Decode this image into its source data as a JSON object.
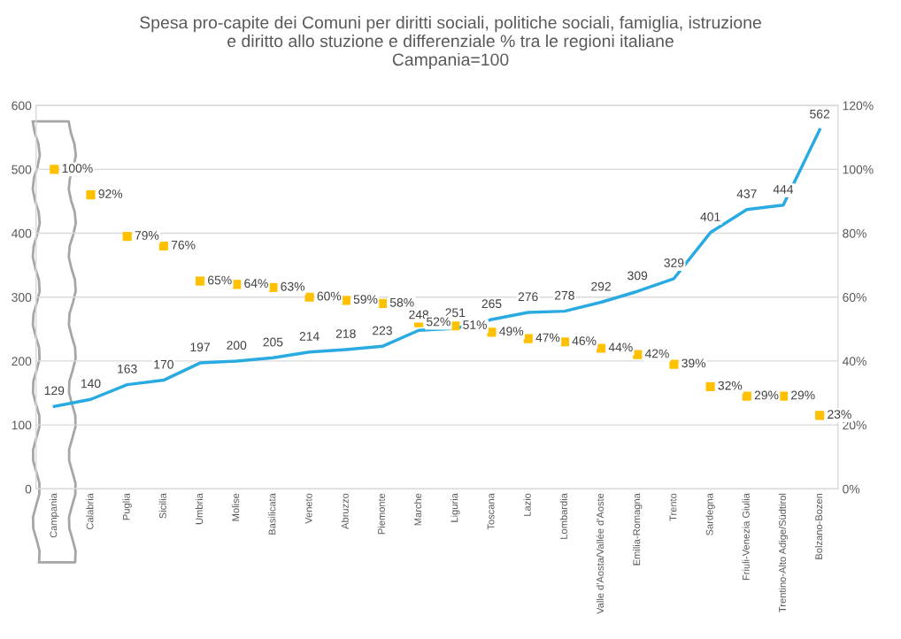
{
  "chart_data": {
    "type": "line",
    "title": "Spesa pro-capite dei Comuni per diritti sociali, politiche sociali, famiglia, istruzione\ne diritto allo stuzione e differenziale % tra le regioni italiane\nCampania=100",
    "categories": [
      "Campania",
      "Calabria",
      "Puglia",
      "Sicilia",
      "Umbria",
      "Molise",
      "Basilicata",
      "Veneto",
      "Abruzzo",
      "Piemonte",
      "Marche",
      "Liguria",
      "Toscana",
      "Lazio",
      "Lombardia",
      "Valle d'Aosta/Vallée d'Aoste",
      "Emilia-Romagna",
      "Trento",
      "Sardegna",
      "Friuli-Venezia Giulia",
      "Trentino-Alto Adige/Südtirol",
      "Bolzano-Bozen"
    ],
    "series": [
      {
        "color": "#29abe2",
        "marker": "none",
        "line_style": "solid",
        "values": [
          129,
          140,
          163,
          170,
          197,
          200,
          205,
          214,
          218,
          223,
          248,
          251,
          265,
          276,
          278,
          292,
          309,
          329,
          401,
          437,
          444,
          562
        ],
        "value_labels": [
          "129",
          "140",
          "163",
          "170",
          "197",
          "200",
          "205",
          "214",
          "218",
          "223",
          "248",
          "251",
          "265",
          "276",
          "278",
          "292",
          "309",
          "329",
          "401",
          "437",
          "444",
          "562"
        ]
      },
      {
        "type": "scatter",
        "axis": "y2",
        "color": "#ffc000",
        "marker": "square",
        "values": [
          100,
          92,
          79,
          76,
          65,
          64,
          63,
          60,
          59,
          58,
          52,
          51,
          49,
          47,
          46,
          44,
          42,
          39,
          32,
          29,
          29,
          23
        ],
        "value_labels": [
          "100%",
          "92%",
          "79%",
          "76%",
          "65%",
          "64%",
          "63%",
          "60%",
          "59%",
          "58%",
          "52%",
          "51%",
          "49%",
          "47%",
          "46%",
          "44%",
          "42%",
          "39%",
          "32%",
          "29%",
          "29%",
          "23%"
        ]
      }
    ],
    "ylim": [
      0,
      600
    ],
    "yticks": [
      0,
      100,
      200,
      300,
      400,
      500,
      600
    ],
    "y2lim": [
      0,
      120
    ],
    "y2ticks": [
      {
        "value": 0,
        "label": "0%"
      },
      {
        "value": 20,
        "label": "20%"
      },
      {
        "value": 40,
        "label": "40%"
      },
      {
        "value": 60,
        "label": "60%"
      },
      {
        "value": 80,
        "label": "80%"
      },
      {
        "value": 100,
        "label": "100%"
      },
      {
        "value": 120,
        "label": "120%"
      }
    ],
    "grid": "y"
  }
}
